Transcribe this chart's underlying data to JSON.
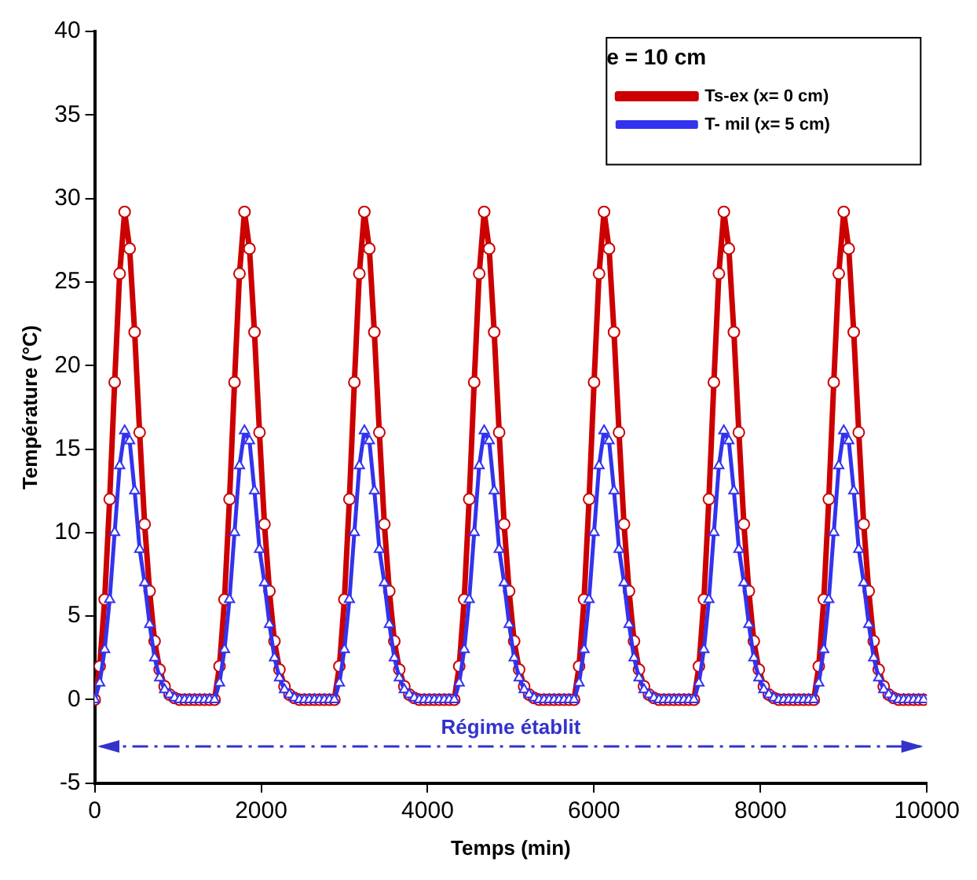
{
  "chart_data": {
    "type": "line",
    "xlabel": "Temps (min)",
    "ylabel": "Température (°C)",
    "legend_title": "e = 10 cm",
    "legend": "top right",
    "grid": false,
    "xlim": [
      0,
      10000
    ],
    "xticks": [
      0,
      2000,
      4000,
      6000,
      8000,
      10000
    ],
    "ylim": [
      -5,
      40
    ],
    "yticks": [
      -5,
      0,
      5,
      10,
      15,
      20,
      25,
      30,
      35,
      40
    ],
    "x": [
      0,
      60,
      120,
      180,
      240,
      300,
      360,
      420,
      480,
      540,
      600,
      660,
      720,
      780,
      840,
      900,
      960,
      1020,
      1080,
      1140,
      1200,
      1260,
      1320,
      1380,
      1440,
      1500,
      1560,
      1620,
      1680,
      1740,
      1800,
      1860,
      1920,
      1980,
      2040,
      2100,
      2160,
      2220,
      2280,
      2340,
      2400,
      2460,
      2520,
      2580,
      2640,
      2700,
      2760,
      2820,
      2880,
      2940,
      3000,
      3060,
      3120,
      3180,
      3240,
      3300,
      3360,
      3420,
      3480,
      3540,
      3600,
      3660,
      3720,
      3780,
      3840,
      3900,
      3960,
      4020,
      4080,
      4140,
      4200,
      4260,
      4320,
      4380,
      4440,
      4500,
      4560,
      4620,
      4680,
      4740,
      4800,
      4860,
      4920,
      4980,
      5040,
      5100,
      5160,
      5220,
      5280,
      5340,
      5400,
      5460,
      5520,
      5580,
      5640,
      5700,
      5760,
      5820,
      5880,
      5940,
      6000,
      6060,
      6120,
      6180,
      6240,
      6300,
      6360,
      6420,
      6480,
      6540,
      6600,
      6660,
      6720,
      6780,
      6840,
      6900,
      6960,
      7020,
      7080,
      7140,
      7200,
      7260,
      7320,
      7380,
      7440,
      7500,
      7560,
      7620,
      7680,
      7740,
      7800,
      7860,
      7920,
      7980,
      8040,
      8100,
      8160,
      8220,
      8280,
      8340,
      8400,
      8460,
      8520,
      8580,
      8640,
      8700,
      8760,
      8820,
      8880,
      8940,
      9000,
      9060,
      9120,
      9180,
      9240,
      9300,
      9360,
      9420,
      9480,
      9540,
      9600,
      9660,
      9720,
      9780,
      9840,
      9900,
      9960
    ],
    "series": [
      {
        "name": "Ts-ex (x= 0 cm)",
        "color": "#cc0000",
        "marker": "circle",
        "values": [
          0,
          2,
          6,
          12,
          19,
          25.5,
          29.2,
          27,
          22,
          16,
          10.5,
          6.5,
          3.5,
          1.8,
          0.8,
          0.3,
          0.1,
          0,
          0,
          0,
          0,
          0,
          0,
          0,
          0,
          2,
          6,
          12,
          19,
          25.5,
          29.2,
          27,
          22,
          16,
          10.5,
          6.5,
          3.5,
          1.8,
          0.8,
          0.3,
          0.1,
          0,
          0,
          0,
          0,
          0,
          0,
          0,
          0,
          2,
          6,
          12,
          19,
          25.5,
          29.2,
          27,
          22,
          16,
          10.5,
          6.5,
          3.5,
          1.8,
          0.8,
          0.3,
          0.1,
          0,
          0,
          0,
          0,
          0,
          0,
          0,
          0,
          2,
          6,
          12,
          19,
          25.5,
          29.2,
          27,
          22,
          16,
          10.5,
          6.5,
          3.5,
          1.8,
          0.8,
          0.3,
          0.1,
          0,
          0,
          0,
          0,
          0,
          0,
          0,
          0,
          2,
          6,
          12,
          19,
          25.5,
          29.2,
          27,
          22,
          16,
          10.5,
          6.5,
          3.5,
          1.8,
          0.8,
          0.3,
          0.1,
          0,
          0,
          0,
          0,
          0,
          0,
          0,
          0,
          2,
          6,
          12,
          19,
          25.5,
          29.2,
          27,
          22,
          16,
          10.5,
          6.5,
          3.5,
          1.8,
          0.8,
          0.3,
          0.1,
          0,
          0,
          0,
          0,
          0,
          0,
          0,
          0,
          2,
          6,
          12,
          19,
          25.5,
          29.2,
          27,
          22,
          16,
          10.5,
          6.5,
          3.5,
          1.8,
          0.8,
          0.3,
          0.1,
          0,
          0,
          0,
          0,
          0,
          0
        ]
      },
      {
        "name": "T- mil (x= 5 cm)",
        "color": "#3333ee",
        "marker": "triangle",
        "values": [
          0,
          1,
          3,
          6,
          10,
          14,
          16.1,
          15.5,
          12.5,
          9,
          7,
          4.5,
          2.5,
          1.3,
          0.6,
          0.3,
          0.1,
          0,
          0,
          0,
          0,
          0,
          0,
          0,
          0,
          1,
          3,
          6,
          10,
          14,
          16.1,
          15.5,
          12.5,
          9,
          7,
          4.5,
          2.5,
          1.3,
          0.6,
          0.3,
          0.1,
          0,
          0,
          0,
          0,
          0,
          0,
          0,
          0,
          1,
          3,
          6,
          10,
          14,
          16.1,
          15.5,
          12.5,
          9,
          7,
          4.5,
          2.5,
          1.3,
          0.6,
          0.3,
          0.1,
          0,
          0,
          0,
          0,
          0,
          0,
          0,
          0,
          1,
          3,
          6,
          10,
          14,
          16.1,
          15.5,
          12.5,
          9,
          7,
          4.5,
          2.5,
          1.3,
          0.6,
          0.3,
          0.1,
          0,
          0,
          0,
          0,
          0,
          0,
          0,
          0,
          1,
          3,
          6,
          10,
          14,
          16.1,
          15.5,
          12.5,
          9,
          7,
          4.5,
          2.5,
          1.3,
          0.6,
          0.3,
          0.1,
          0,
          0,
          0,
          0,
          0,
          0,
          0,
          0,
          1,
          3,
          6,
          10,
          14,
          16.1,
          15.5,
          12.5,
          9,
          7,
          4.5,
          2.5,
          1.3,
          0.6,
          0.3,
          0.1,
          0,
          0,
          0,
          0,
          0,
          0,
          0,
          0,
          1,
          3,
          6,
          10,
          14,
          16.1,
          15.5,
          12.5,
          9,
          7,
          4.5,
          2.5,
          1.3,
          0.6,
          0.3,
          0.1,
          0,
          0,
          0,
          0,
          0,
          0
        ]
      }
    ],
    "ref_lines": [
      {
        "axis": "y",
        "value": -2.8,
        "label": "Régime établit",
        "color": "#3333cc",
        "line_style": "dashed"
      }
    ]
  }
}
